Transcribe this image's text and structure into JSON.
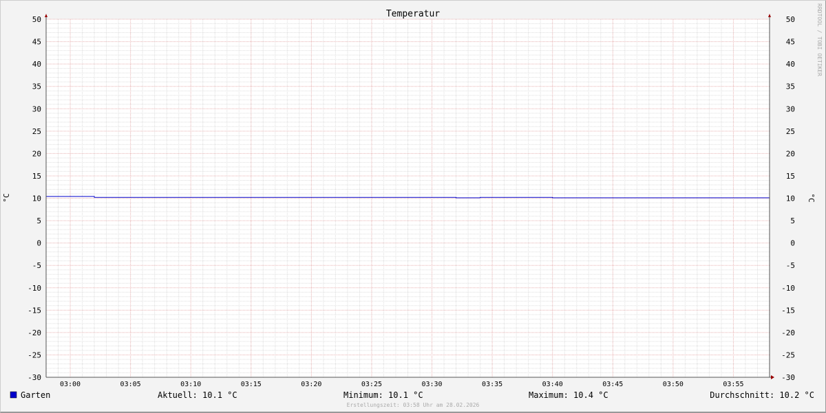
{
  "chart_data": {
    "type": "line",
    "title": "Temperatur",
    "ylabel": "°C",
    "ylim": [
      -30,
      50
    ],
    "yticks": [
      50,
      45,
      40,
      35,
      30,
      25,
      20,
      15,
      10,
      5,
      0,
      -5,
      -10,
      -15,
      -20,
      -25,
      -30
    ],
    "xlim": [
      "02:58",
      "03:58"
    ],
    "xticks": [
      "03:00",
      "03:05",
      "03:10",
      "03:15",
      "03:20",
      "03:25",
      "03:30",
      "03:35",
      "03:40",
      "03:45",
      "03:50",
      "03:55"
    ],
    "grid": true,
    "series": [
      {
        "name": "Garten",
        "color": "#0000cc",
        "points": [
          {
            "x": "02:58",
            "y": 10.4
          },
          {
            "x": "03:02",
            "y": 10.4
          },
          {
            "x": "03:02",
            "y": 10.2
          },
          {
            "x": "03:32",
            "y": 10.2
          },
          {
            "x": "03:32",
            "y": 10.1
          },
          {
            "x": "03:34",
            "y": 10.1
          },
          {
            "x": "03:34",
            "y": 10.2
          },
          {
            "x": "03:40",
            "y": 10.2
          },
          {
            "x": "03:40",
            "y": 10.1
          },
          {
            "x": "03:58",
            "y": 10.1
          }
        ]
      }
    ],
    "legend": {
      "position": "bottom",
      "series_label": "Garten",
      "current": "Aktuell: 10.1 °C",
      "minimum": "Minimum: 10.1 °C",
      "maximum": "Maximum: 10.4 °C",
      "average": "Durchschnitt: 10.2 °C"
    },
    "created": "Erstellungszeit: 03:58 Uhr am 28.02.2026",
    "watermark": "RRDTOOL / TOBI OETIKER"
  }
}
